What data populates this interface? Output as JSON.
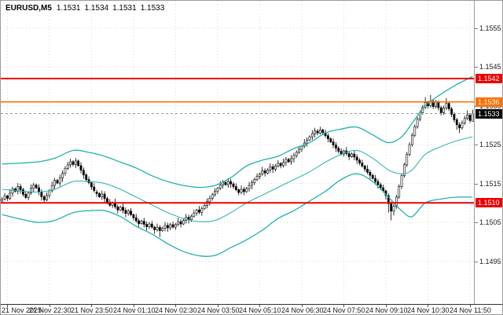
{
  "header": {
    "symbol_timeframe": "EURUSD,M5",
    "ohlc": [
      "1.1531",
      "1.1534",
      "1.1531",
      "1.1533"
    ]
  },
  "colors": {
    "background": "#ffffff",
    "grid": "#d8d8d8",
    "bull": "#ffffff",
    "bear": "#000000",
    "candle_outline": "#000000",
    "band": "#20b2aa",
    "axis_text": "#1a1a1a",
    "axis_line": "#333333"
  },
  "chart_data": {
    "type": "candlestick",
    "symbol": "EURUSD",
    "timeframe": "M5",
    "price_base": 1.15,
    "unit": 1e-05,
    "y_axis": {
      "min": 1.1484,
      "max": 1.1562,
      "gridlines": [
        1.1555,
        1.1545,
        1.1535,
        1.1525,
        1.1515,
        1.1505,
        1.1495
      ],
      "labels": [
        "1.1555",
        "1.1545",
        "1.1535",
        "1.1525",
        "1.1515",
        "1.1505",
        "1.1495"
      ]
    },
    "x_labels": [
      {
        "i": 2,
        "t": "21 Nov 2025"
      },
      {
        "i": 18,
        "t": "21 Nov 22:30"
      },
      {
        "i": 34,
        "t": "21 Nov 23:50"
      },
      {
        "i": 50,
        "t": "24 Nov 01:10"
      },
      {
        "i": 66,
        "t": "24 Nov 02:30"
      },
      {
        "i": 82,
        "t": "24 Nov 03:50"
      },
      {
        "i": 98,
        "t": "24 Nov 05:10"
      },
      {
        "i": 114,
        "t": "24 Nov 06:30"
      },
      {
        "i": 130,
        "t": "24 Nov 07:50"
      },
      {
        "i": 146,
        "t": "24 Nov 09:10"
      },
      {
        "i": 162,
        "t": "24 Nov 10:30"
      },
      {
        "i": 178,
        "t": "24 Nov 11:50"
      }
    ],
    "levels": [
      {
        "price": 1.1542,
        "label": "1.1542",
        "color": "#ee0000",
        "width": 2
      },
      {
        "price": 1.1536,
        "label": "1.1536",
        "color": "#ff7000",
        "width": 1.7
      },
      {
        "price": 1.151,
        "label": "1.1510",
        "color": "#ee0000",
        "width": 2
      }
    ],
    "current_price": {
      "price": 1.1533,
      "label": "1.1533",
      "badge_bg": "#000000",
      "line_color": "#999999"
    },
    "bollinger": {
      "label": "Bollinger Bands (20,2)",
      "color": "#20b2aa",
      "upper": [
        [
          0,
          200
        ],
        [
          8,
          203
        ],
        [
          14,
          206
        ],
        [
          20,
          215
        ],
        [
          27,
          235
        ],
        [
          33,
          230
        ],
        [
          39,
          220
        ],
        [
          45,
          205
        ],
        [
          51,
          190
        ],
        [
          57,
          170
        ],
        [
          63,
          155
        ],
        [
          69,
          145
        ],
        [
          75,
          140
        ],
        [
          81,
          145
        ],
        [
          87,
          165
        ],
        [
          93,
          195
        ],
        [
          99,
          210
        ],
        [
          105,
          220
        ],
        [
          111,
          240
        ],
        [
          117,
          255
        ],
        [
          123,
          280
        ],
        [
          129,
          290
        ],
        [
          135,
          295
        ],
        [
          141,
          275
        ],
        [
          147,
          255
        ],
        [
          152,
          270
        ],
        [
          156,
          305
        ],
        [
          161,
          350
        ],
        [
          167,
          380
        ],
        [
          173,
          405
        ],
        [
          179,
          425
        ]
      ],
      "middle": [
        [
          0,
          135
        ],
        [
          8,
          130
        ],
        [
          14,
          128
        ],
        [
          20,
          135
        ],
        [
          27,
          155
        ],
        [
          33,
          155
        ],
        [
          39,
          150
        ],
        [
          45,
          135
        ],
        [
          51,
          115
        ],
        [
          57,
          95
        ],
        [
          63,
          75
        ],
        [
          69,
          60
        ],
        [
          75,
          52
        ],
        [
          81,
          55
        ],
        [
          87,
          75
        ],
        [
          93,
          100
        ],
        [
          99,
          120
        ],
        [
          105,
          140
        ],
        [
          111,
          160
        ],
        [
          117,
          180
        ],
        [
          123,
          205
        ],
        [
          129,
          225
        ],
        [
          135,
          235
        ],
        [
          141,
          215
        ],
        [
          147,
          185
        ],
        [
          152,
          175
        ],
        [
          156,
          185
        ],
        [
          161,
          225
        ],
        [
          167,
          245
        ],
        [
          173,
          260
        ],
        [
          179,
          270
        ]
      ],
      "lower": [
        [
          0,
          70
        ],
        [
          8,
          57
        ],
        [
          14,
          50
        ],
        [
          20,
          55
        ],
        [
          27,
          75
        ],
        [
          33,
          80
        ],
        [
          39,
          80
        ],
        [
          45,
          65
        ],
        [
          51,
          40
        ],
        [
          57,
          20
        ],
        [
          63,
          -5
        ],
        [
          69,
          -25
        ],
        [
          75,
          -36
        ],
        [
          81,
          -35
        ],
        [
          87,
          -15
        ],
        [
          93,
          5
        ],
        [
          99,
          30
        ],
        [
          105,
          60
        ],
        [
          111,
          80
        ],
        [
          117,
          105
        ],
        [
          123,
          130
        ],
        [
          129,
          160
        ],
        [
          135,
          175
        ],
        [
          141,
          155
        ],
        [
          147,
          115
        ],
        [
          152,
          80
        ],
        [
          156,
          65
        ],
        [
          161,
          100
        ],
        [
          167,
          110
        ],
        [
          173,
          115
        ],
        [
          179,
          115
        ]
      ]
    },
    "candles": [
      [
        105,
        115,
        99,
        110
      ],
      [
        110,
        126,
        106,
        118
      ],
      [
        118,
        121,
        105,
        112
      ],
      [
        112,
        135,
        107,
        125
      ],
      [
        125,
        142,
        116,
        136
      ],
      [
        136,
        140,
        127,
        130
      ],
      [
        130,
        151,
        122,
        142
      ],
      [
        142,
        149,
        124,
        134
      ],
      [
        134,
        139,
        116,
        122
      ],
      [
        122,
        130,
        110,
        114
      ],
      [
        114,
        129,
        107,
        126
      ],
      [
        126,
        148,
        121,
        138
      ],
      [
        138,
        152,
        129,
        146
      ],
      [
        146,
        150,
        136,
        139
      ],
      [
        139,
        148,
        120,
        128
      ],
      [
        128,
        135,
        106,
        116
      ],
      [
        116,
        121,
        102,
        108
      ],
      [
        108,
        127,
        104,
        119
      ],
      [
        119,
        135,
        112,
        132
      ],
      [
        132,
        155,
        127,
        145
      ],
      [
        145,
        164,
        136,
        158
      ],
      [
        158,
        162,
        148,
        151
      ],
      [
        151,
        173,
        143,
        164
      ],
      [
        164,
        183,
        154,
        176
      ],
      [
        176,
        194,
        170,
        189
      ],
      [
        189,
        206,
        185,
        198
      ],
      [
        198,
        214,
        191,
        206
      ],
      [
        206,
        210,
        194,
        199
      ],
      [
        199,
        216,
        190,
        208
      ],
      [
        208,
        212,
        193,
        196
      ],
      [
        196,
        205,
        176,
        184
      ],
      [
        184,
        191,
        162,
        172
      ],
      [
        172,
        177,
        154,
        160
      ],
      [
        160,
        168,
        148,
        152
      ],
      [
        152,
        155,
        134,
        141
      ],
      [
        141,
        151,
        127,
        132
      ],
      [
        128,
        134,
        115,
        124
      ],
      [
        124,
        128,
        113,
        116
      ],
      [
        116,
        132,
        108,
        123
      ],
      [
        123,
        130,
        101,
        111
      ],
      [
        111,
        116,
        96,
        102
      ],
      [
        102,
        110,
        90,
        94
      ],
      [
        94,
        104,
        87,
        101
      ],
      [
        101,
        111,
        85,
        90
      ],
      [
        90,
        96,
        73,
        82
      ],
      [
        82,
        93,
        79,
        89
      ],
      [
        89,
        98,
        73,
        81
      ],
      [
        81,
        88,
        63,
        73
      ],
      [
        73,
        84,
        67,
        79
      ],
      [
        79,
        87,
        66,
        70
      ],
      [
        70,
        73,
        55,
        62
      ],
      [
        62,
        72,
        49,
        54
      ],
      [
        54,
        60,
        38,
        47
      ],
      [
        47,
        57,
        44,
        53
      ],
      [
        53,
        62,
        37,
        45
      ],
      [
        45,
        52,
        29,
        39
      ],
      [
        39,
        51,
        33,
        46
      ],
      [
        46,
        54,
        34,
        38
      ],
      [
        38,
        41,
        20,
        31
      ],
      [
        31,
        47,
        26,
        37
      ],
      [
        37,
        43,
        12,
        29
      ],
      [
        29,
        39,
        26,
        35
      ],
      [
        35,
        51,
        27,
        42
      ],
      [
        42,
        49,
        26,
        36
      ],
      [
        36,
        49,
        30,
        44
      ],
      [
        44,
        52,
        34,
        38
      ],
      [
        38,
        48,
        31,
        45
      ],
      [
        45,
        62,
        40,
        52
      ],
      [
        52,
        58,
        37,
        46
      ],
      [
        46,
        59,
        43,
        55
      ],
      [
        55,
        72,
        47,
        63
      ],
      [
        63,
        70,
        47,
        57
      ],
      [
        57,
        71,
        51,
        66
      ],
      [
        66,
        82,
        62,
        74
      ],
      [
        74,
        85,
        67,
        82
      ],
      [
        82,
        92,
        71,
        76
      ],
      [
        76,
        91,
        67,
        85
      ],
      [
        85,
        98,
        82,
        94
      ],
      [
        94,
        112,
        86,
        103
      ],
      [
        103,
        119,
        93,
        112
      ],
      [
        112,
        126,
        106,
        121
      ],
      [
        121,
        138,
        117,
        130
      ],
      [
        130,
        141,
        123,
        138
      ],
      [
        138,
        156,
        133,
        146
      ],
      [
        146,
        159,
        137,
        153
      ],
      [
        153,
        157,
        144,
        147
      ],
      [
        147,
        164,
        139,
        155
      ],
      [
        155,
        162,
        139,
        149
      ],
      [
        149,
        154,
        136,
        142
      ],
      [
        142,
        150,
        130,
        134
      ],
      [
        134,
        137,
        120,
        127
      ],
      [
        127,
        145,
        122,
        135
      ],
      [
        135,
        141,
        120,
        129
      ],
      [
        129,
        141,
        126,
        137
      ],
      [
        137,
        154,
        129,
        145
      ],
      [
        145,
        159,
        135,
        152
      ],
      [
        152,
        165,
        146,
        160
      ],
      [
        160,
        176,
        156,
        168
      ],
      [
        168,
        178,
        161,
        175
      ],
      [
        175,
        193,
        170,
        183
      ],
      [
        183,
        189,
        168,
        177
      ],
      [
        177,
        189,
        174,
        185
      ],
      [
        185,
        202,
        177,
        193
      ],
      [
        193,
        200,
        177,
        187
      ],
      [
        187,
        200,
        181,
        195
      ],
      [
        195,
        210,
        191,
        202
      ],
      [
        202,
        205,
        189,
        196
      ],
      [
        196,
        214,
        191,
        204
      ],
      [
        204,
        218,
        195,
        212
      ],
      [
        212,
        216,
        203,
        206
      ],
      [
        206,
        223,
        198,
        214
      ],
      [
        214,
        229,
        204,
        222
      ],
      [
        222,
        235,
        216,
        230
      ],
      [
        230,
        246,
        226,
        238
      ],
      [
        238,
        249,
        231,
        246
      ],
      [
        246,
        264,
        241,
        254
      ],
      [
        254,
        268,
        245,
        262
      ],
      [
        262,
        274,
        259,
        270
      ],
      [
        270,
        287,
        262,
        278
      ],
      [
        278,
        293,
        268,
        285
      ],
      [
        285,
        290,
        274,
        280
      ],
      [
        280,
        296,
        276,
        288
      ],
      [
        288,
        291,
        274,
        281
      ],
      [
        281,
        288,
        268,
        273
      ],
      [
        273,
        279,
        256,
        265
      ],
      [
        265,
        269,
        254,
        257
      ],
      [
        257,
        266,
        241,
        249
      ],
      [
        249,
        256,
        231,
        241
      ],
      [
        241,
        246,
        227,
        233
      ],
      [
        233,
        241,
        222,
        226
      ],
      [
        226,
        237,
        219,
        234
      ],
      [
        234,
        244,
        222,
        227
      ],
      [
        227,
        233,
        210,
        219
      ],
      [
        219,
        230,
        216,
        226
      ],
      [
        226,
        235,
        210,
        218
      ],
      [
        218,
        225,
        200,
        210
      ],
      [
        210,
        215,
        197,
        203
      ],
      [
        203,
        211,
        191,
        195
      ],
      [
        195,
        198,
        180,
        187
      ],
      [
        187,
        197,
        174,
        179
      ],
      [
        179,
        185,
        162,
        171
      ],
      [
        171,
        175,
        160,
        163
      ],
      [
        163,
        172,
        147,
        155
      ],
      [
        155,
        162,
        137,
        147
      ],
      [
        147,
        152,
        133,
        139
      ],
      [
        139,
        147,
        127,
        131
      ],
      [
        131,
        134,
        108,
        119
      ],
      [
        119,
        124,
        75,
        98
      ],
      [
        98,
        104,
        55,
        79
      ],
      [
        79,
        97,
        68,
        91
      ],
      [
        91,
        121,
        85,
        115
      ],
      [
        115,
        148,
        110,
        142
      ],
      [
        142,
        175,
        136,
        170
      ],
      [
        170,
        204,
        165,
        198
      ],
      [
        198,
        231,
        192,
        225
      ],
      [
        225,
        256,
        220,
        250
      ],
      [
        250,
        280,
        245,
        274
      ],
      [
        274,
        302,
        269,
        296
      ],
      [
        296,
        321,
        291,
        315
      ],
      [
        315,
        338,
        310,
        332
      ],
      [
        332,
        352,
        327,
        346
      ],
      [
        346,
        372,
        341,
        358
      ],
      [
        358,
        363,
        343,
        350
      ],
      [
        350,
        378,
        345,
        362
      ],
      [
        362,
        367,
        342,
        348
      ],
      [
        348,
        365,
        343,
        359
      ],
      [
        359,
        364,
        338,
        345
      ],
      [
        345,
        350,
        325,
        332
      ],
      [
        332,
        350,
        327,
        344
      ],
      [
        344,
        370,
        339,
        356
      ],
      [
        356,
        361,
        336,
        342
      ],
      [
        342,
        347,
        321,
        328
      ],
      [
        328,
        333,
        307,
        314
      ],
      [
        314,
        319,
        288,
        301
      ],
      [
        301,
        307,
        280,
        293
      ],
      [
        293,
        312,
        288,
        306
      ],
      [
        306,
        324,
        301,
        318
      ],
      [
        318,
        338,
        313,
        326
      ],
      [
        326,
        331,
        306,
        312
      ],
      [
        310,
        340,
        310,
        330
      ]
    ]
  }
}
